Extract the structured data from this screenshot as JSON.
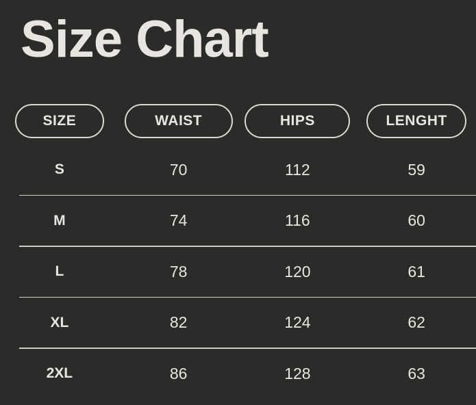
{
  "title": "Size Chart",
  "chart_data": {
    "type": "table",
    "title": "Size Chart",
    "columns": [
      "SIZE",
      "WAIST",
      "HIPS",
      "LENGHT"
    ],
    "rows": [
      [
        "S",
        70,
        112,
        59
      ],
      [
        "M",
        74,
        116,
        60
      ],
      [
        "L",
        78,
        120,
        61
      ],
      [
        "XL",
        82,
        124,
        62
      ],
      [
        "2XL",
        86,
        128,
        63
      ]
    ]
  },
  "colors": {
    "background": "#2B2B29",
    "text": "#E8E6DF",
    "divider": "#CFCDC5",
    "pill_border": "#DBD9D1"
  }
}
